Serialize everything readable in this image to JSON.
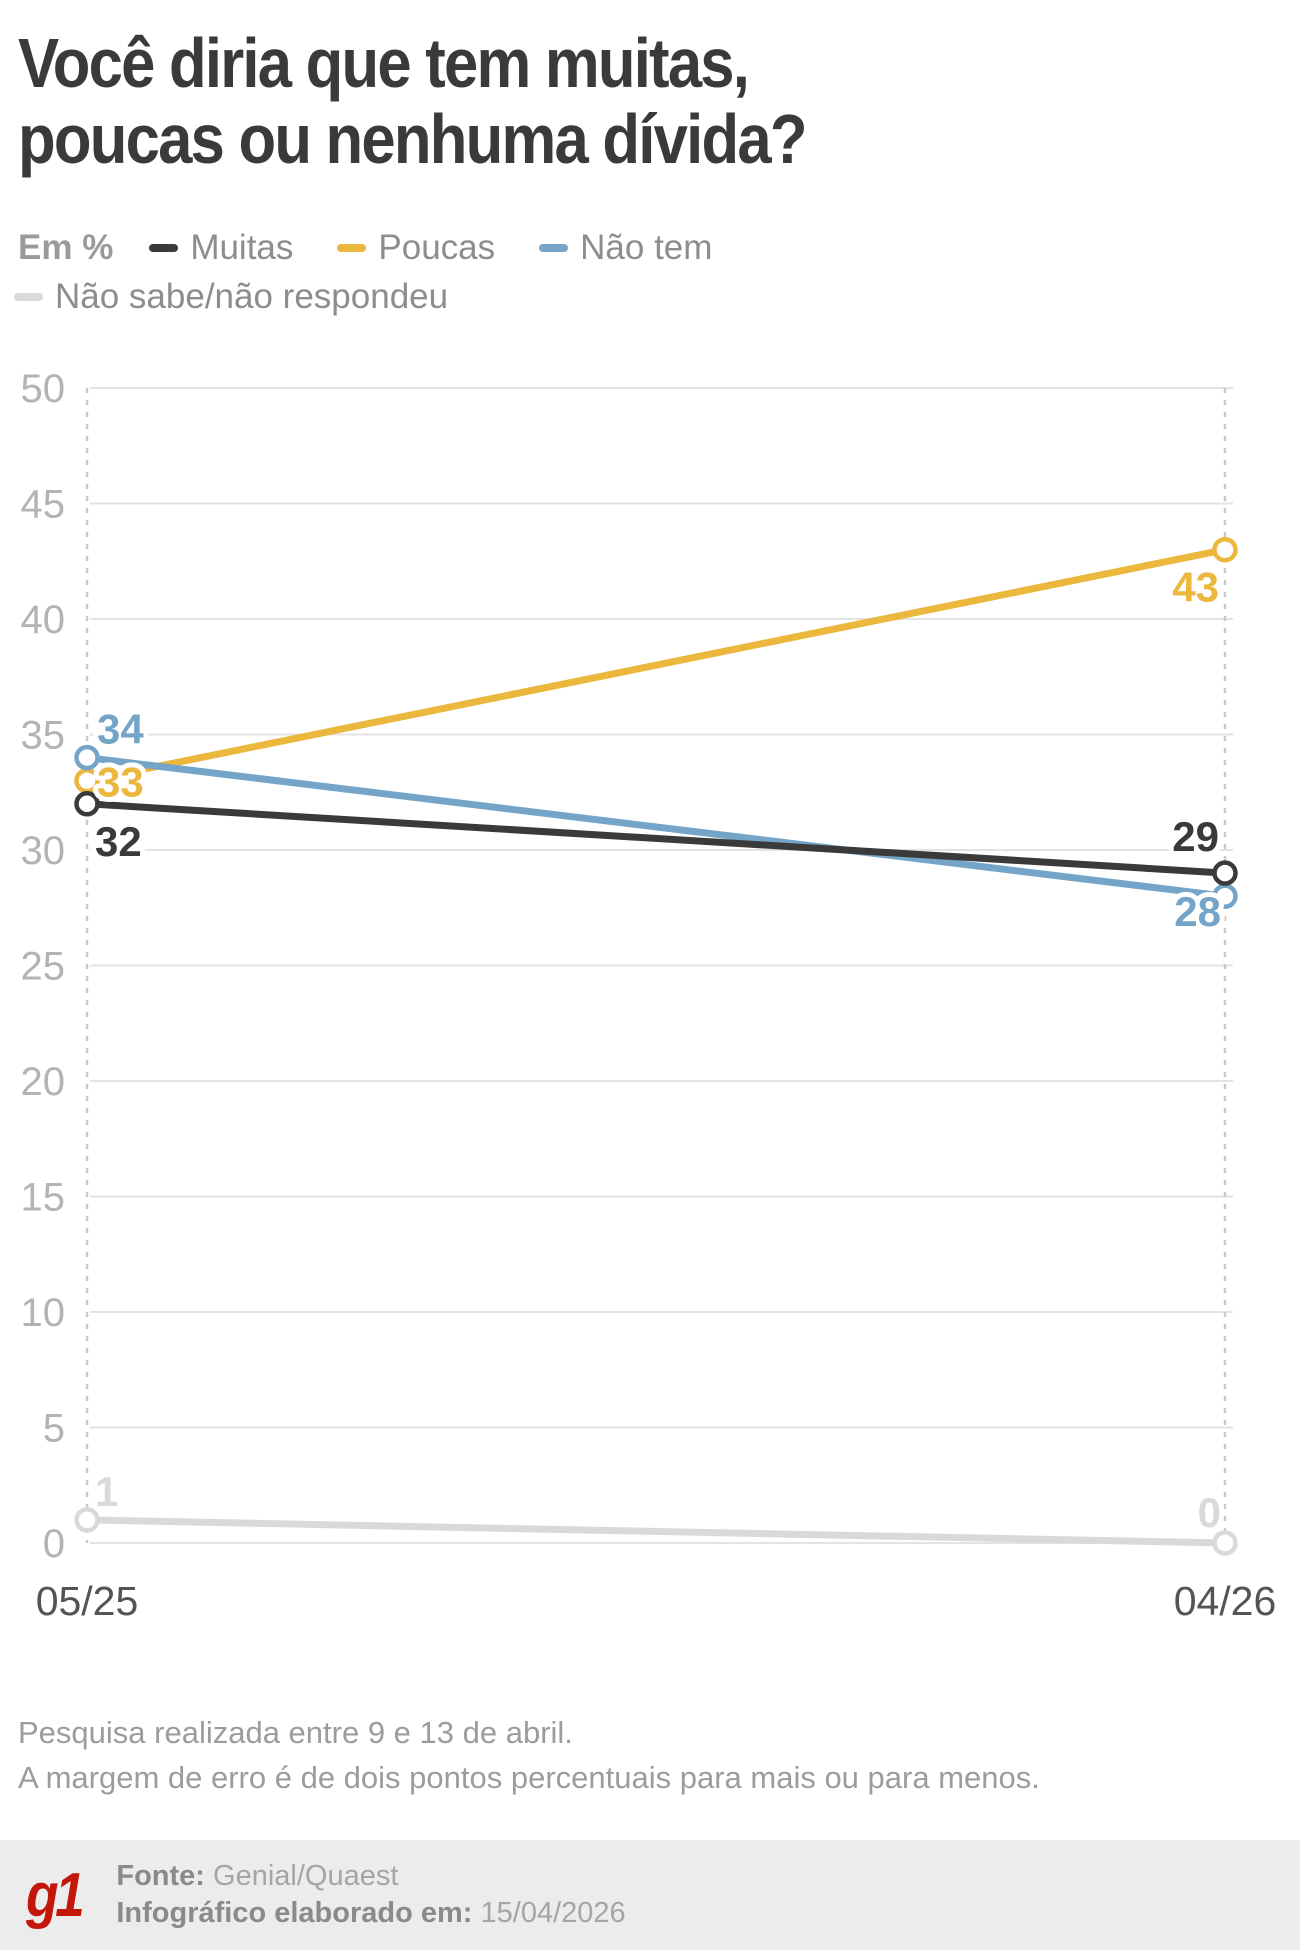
{
  "title_lines": [
    "Você diria que tem muitas,",
    "poucas ou nenhuma dívida?"
  ],
  "legend": {
    "unit_label": "Em %"
  },
  "chart_data": {
    "type": "line",
    "title": "Você diria que tem muitas, poucas ou nenhuma dívida?",
    "unit": "%",
    "x": [
      "05/25",
      "04/26"
    ],
    "series": [
      {
        "name": "Muitas",
        "color": "#3a3a3a",
        "values": [
          32,
          29
        ]
      },
      {
        "name": "Poucas",
        "color": "#ecb73d",
        "values": [
          33,
          43
        ]
      },
      {
        "name": "Não tem",
        "color": "#74a5c8",
        "values": [
          34,
          28
        ]
      },
      {
        "name": "Não sabe/não respondeu",
        "color": "#d9d9d9",
        "values": [
          1,
          0
        ]
      }
    ],
    "ylim": [
      0,
      50
    ],
    "ytick_step": 5,
    "grid": true,
    "legend_position": "top"
  },
  "notes": [
    "Pesquisa realizada entre 9 e 13 de abril.",
    "A margem de erro é de dois pontos percentuais para mais ou para menos."
  ],
  "footer": {
    "logo_text": "g1",
    "logo_color": "#c4170c",
    "source_label": "Fonte:",
    "source_value": "Genial/Quaest",
    "made_label": "Infográfico elaborado em:",
    "made_value": "15/04/2026"
  }
}
